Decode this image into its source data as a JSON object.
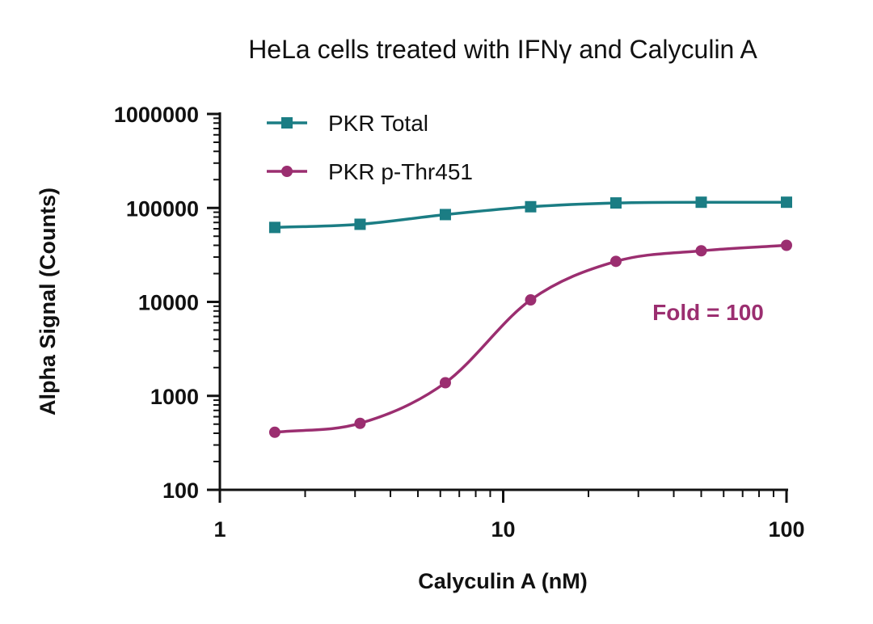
{
  "chart_data": {
    "type": "scatter",
    "title": "HeLa cells treated with IFNγ and Calyculin A",
    "xlabel": "Calyculin A (nM)",
    "ylabel": "Alpha Signal (Counts)",
    "x_scale": "log",
    "y_scale": "log",
    "xlim": [
      1,
      100
    ],
    "ylim": [
      100,
      1000000
    ],
    "x_ticks": [
      "1",
      "10",
      "100"
    ],
    "y_ticks": [
      "100",
      "1000",
      "10000",
      "100000",
      "1000000"
    ],
    "legend_position": "top-left",
    "grid": false,
    "series": [
      {
        "name": "PKR Total",
        "color": "#1b7d84",
        "marker": "square",
        "x": [
          1.5625,
          3.125,
          6.25,
          12.5,
          25,
          50,
          100
        ],
        "y": [
          62000,
          67000,
          85000,
          103000,
          113000,
          115000,
          115000
        ],
        "fit": "sigmoid"
      },
      {
        "name": "PKR p-Thr451",
        "color": "#9b2e70",
        "marker": "circle",
        "x": [
          1.5625,
          3.125,
          6.25,
          12.5,
          25,
          50,
          100
        ],
        "y": [
          410,
          510,
          1380,
          10500,
          27000,
          35000,
          40000
        ],
        "fit": "sigmoid"
      }
    ],
    "annotations": [
      {
        "text": "Fold = 100",
        "color": "#9b2e70"
      }
    ]
  }
}
